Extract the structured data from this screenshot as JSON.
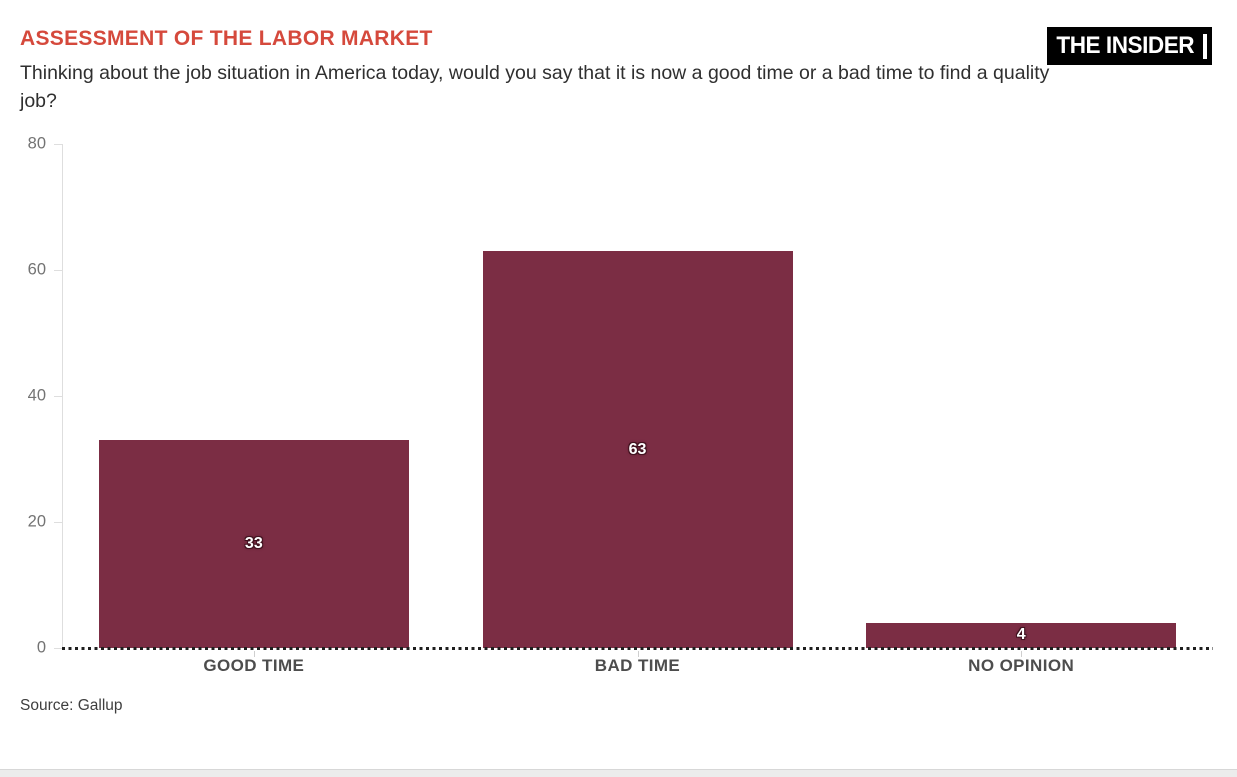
{
  "header": {
    "title": "ASSESSMENT OF THE LABOR MARKET",
    "subtitle": "Thinking about the job situation in America today, would you say that it is now a good time or a bad time to find a quality job?",
    "logo": "THE INSIDER"
  },
  "source": "Source: Gallup",
  "colors": {
    "bar": "#7b2d44",
    "title": "#d5493c",
    "logo_bg": "#000000",
    "logo_text": "#ffffff",
    "value_label_outline": "#40121f"
  },
  "chart_data": {
    "type": "bar",
    "title": "ASSESSMENT OF THE LABOR MARKET",
    "subtitle": "Thinking about the job situation in America today, would you say that it is now a good time or a bad time to find a quality job?",
    "categories": [
      "GOOD TIME",
      "BAD TIME",
      "NO OPINION"
    ],
    "values": [
      33,
      63,
      4
    ],
    "xlabel": "",
    "ylabel": "",
    "ylim": [
      0,
      80
    ],
    "yticks": [
      0,
      20,
      40,
      60,
      80
    ],
    "grid": false,
    "legend": false,
    "value_labels": [
      33,
      63,
      4
    ],
    "annotations": [],
    "source": "Source: Gallup"
  }
}
